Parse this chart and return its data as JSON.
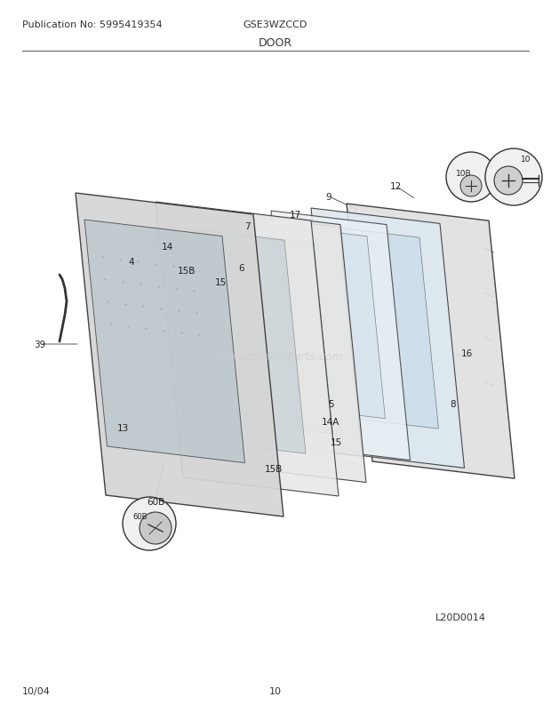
{
  "title": "DOOR",
  "model": "GSE3WZCCD",
  "publication": "Publication No: 5995419354",
  "date": "10/04",
  "page": "10",
  "diagram_id": "L20D0014",
  "bg_color": "#ffffff",
  "line_color": "#333333",
  "label_fontsize": 7.5,
  "header_fontsize": 8,
  "title_fontsize": 9
}
